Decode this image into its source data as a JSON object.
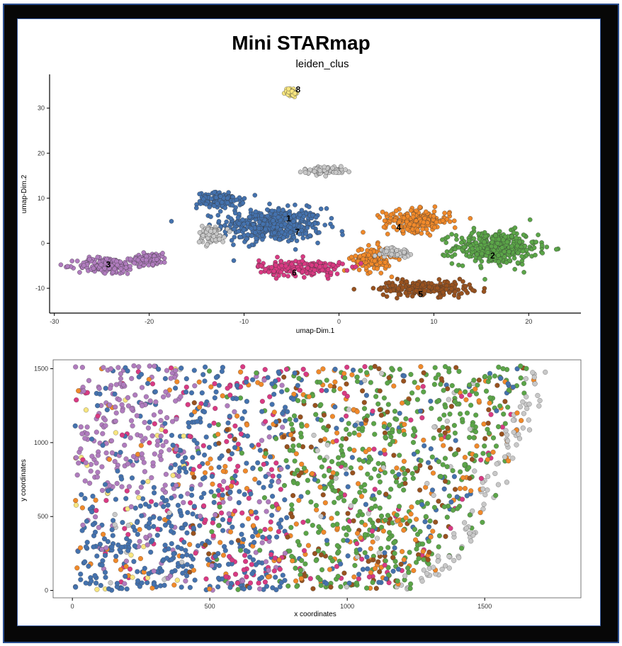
{
  "figure": {
    "title": "Mini STARmap"
  },
  "clusters": [
    {
      "id": "1",
      "color": "#4472ae"
    },
    {
      "id": "2",
      "color": "#5ba548"
    },
    {
      "id": "3",
      "color": "#b07cbe"
    },
    {
      "id": "4",
      "color": "#f0892a"
    },
    {
      "id": "5",
      "color": "#98521f"
    },
    {
      "id": "6",
      "color": "#d93a83"
    },
    {
      "id": "7",
      "color": "#c8c8c8"
    },
    {
      "id": "8",
      "color": "#f7e57e"
    }
  ],
  "chart_data": [
    {
      "type": "scatter",
      "title": "leiden_clus",
      "xlabel": "umap-Dim.1",
      "ylabel": "umap-Dim.2",
      "xlim": [
        -30.5,
        25.5
      ],
      "ylim": [
        -15.5,
        37.5
      ],
      "xticks": [
        -30,
        -20,
        -10,
        0,
        10,
        20
      ],
      "yticks": [
        -10,
        0,
        10,
        20,
        30
      ],
      "grid": false,
      "legend": "none",
      "cluster_labels": [
        {
          "label": "1",
          "x": -5.3,
          "y": 5.5
        },
        {
          "label": "2",
          "x": 16.2,
          "y": -2.8
        },
        {
          "label": "3",
          "x": -24.3,
          "y": -4.7
        },
        {
          "label": "4",
          "x": 6.3,
          "y": 3.5
        },
        {
          "label": "5",
          "x": 8.6,
          "y": -11.3
        },
        {
          "label": "6",
          "x": -4.7,
          "y": -6.5
        },
        {
          "label": "7",
          "x": -4.4,
          "y": 2.5
        },
        {
          "label": "8",
          "x": -4.3,
          "y": 34.1
        }
      ],
      "cluster_regions": [
        {
          "cluster": "1",
          "cx": -7,
          "cy": 4,
          "sx": 4.8,
          "sy": 3.4
        },
        {
          "cluster": "1",
          "cx": -12.5,
          "cy": 9.5,
          "sx": 2.2,
          "sy": 1.6
        },
        {
          "cluster": "2",
          "cx": 16.5,
          "cy": -1,
          "sx": 4,
          "sy": 3.3
        },
        {
          "cluster": "3",
          "cx": -24.5,
          "cy": -5,
          "sx": 2.8,
          "sy": 1.7
        },
        {
          "cluster": "3",
          "cx": -20,
          "cy": -3.5,
          "sx": 1.8,
          "sy": 1.2
        },
        {
          "cluster": "4",
          "cx": 8.2,
          "cy": 5,
          "sx": 3.2,
          "sy": 2.2
        },
        {
          "cluster": "4",
          "cx": 3.5,
          "cy": -3.5,
          "sx": 1.8,
          "sy": 2.5
        },
        {
          "cluster": "5",
          "cx": 9,
          "cy": -10,
          "sx": 4.5,
          "sy": 1.5
        },
        {
          "cluster": "6",
          "cx": -4,
          "cy": -5.5,
          "sx": 4,
          "sy": 1.6
        },
        {
          "cluster": "7",
          "cx": -1.5,
          "cy": 16.2,
          "sx": 2,
          "sy": 0.8
        },
        {
          "cluster": "7",
          "cx": -13.5,
          "cy": 2,
          "sx": 1.3,
          "sy": 1.8
        },
        {
          "cluster": "7",
          "cx": 6,
          "cy": -2,
          "sx": 1.5,
          "sy": 0.8
        },
        {
          "cluster": "8",
          "cx": -5,
          "cy": 33.5,
          "sx": 0.6,
          "sy": 0.9
        }
      ]
    },
    {
      "type": "scatter",
      "title": "",
      "xlabel": "x coordinates",
      "ylabel": "y coordinates",
      "xlim": [
        -70,
        1850
      ],
      "ylim": [
        -50,
        1560
      ],
      "xticks": [
        0,
        500,
        1000,
        1500
      ],
      "yticks": [
        0,
        500,
        1000,
        1500
      ],
      "grid": false,
      "legend": "none",
      "spatial_boundary": "right edge curves from x≈1200 at y=0 to x≈1750 at y=1520"
    }
  ]
}
